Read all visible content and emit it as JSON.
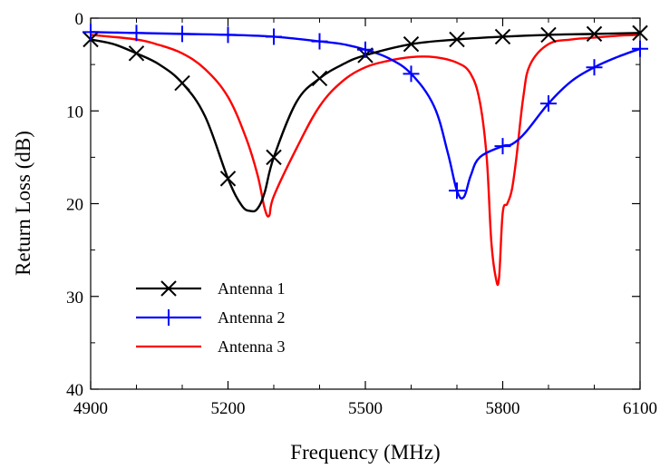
{
  "chart_data": {
    "type": "line",
    "title": "",
    "xlabel": "Frequency (MHz)",
    "ylabel": "Return Loss (dB)",
    "xlim": [
      4900,
      6100
    ],
    "ylim": [
      0,
      40
    ],
    "y_inverted": true,
    "x_ticks": [
      "4900",
      "5200",
      "5500",
      "5800",
      "6100"
    ],
    "x_tick_values": [
      4900,
      5200,
      5500,
      5800,
      6100
    ],
    "y_ticks": [
      "0",
      "10",
      "20",
      "30",
      "40"
    ],
    "y_tick_values": [
      0,
      10,
      20,
      30,
      40
    ],
    "grid": false,
    "legend_position": "lower-left",
    "series": [
      {
        "name": "Antenna 1",
        "color": "#000000",
        "marker": "x-marker",
        "x": [
          4900,
          4950,
          5000,
          5050,
          5100,
          5150,
          5200,
          5230,
          5250,
          5265,
          5280,
          5300,
          5350,
          5400,
          5450,
          5500,
          5600,
          5700,
          5800,
          5900,
          6000,
          6100
        ],
        "y": [
          2.3,
          2.8,
          3.8,
          5.0,
          7.0,
          10.6,
          17.3,
          20.2,
          20.8,
          20.5,
          18.8,
          15.0,
          9.0,
          6.5,
          5.0,
          4.0,
          2.8,
          2.3,
          2.0,
          1.8,
          1.7,
          1.6
        ]
      },
      {
        "name": "Antenna 2",
        "color": "#0000ff",
        "marker": "plus-marker",
        "x": [
          4900,
          5000,
          5100,
          5200,
          5300,
          5400,
          5450,
          5500,
          5550,
          5600,
          5650,
          5680,
          5700,
          5715,
          5730,
          5750,
          5800,
          5820,
          5850,
          5900,
          5950,
          6000,
          6050,
          6100
        ],
        "y": [
          1.5,
          1.6,
          1.7,
          1.8,
          2.0,
          2.5,
          2.8,
          3.4,
          4.3,
          6.0,
          9.5,
          14.5,
          18.6,
          19.3,
          17.0,
          15.0,
          13.8,
          13.6,
          12.3,
          9.2,
          6.8,
          5.3,
          4.2,
          3.3
        ]
      },
      {
        "name": "Antenna 3",
        "color": "#ff0000",
        "marker": "none",
        "x": [
          4900,
          5000,
          5050,
          5100,
          5150,
          5200,
          5240,
          5265,
          5280,
          5290,
          5300,
          5350,
          5400,
          5450,
          5500,
          5550,
          5600,
          5650,
          5700,
          5730,
          5750,
          5765,
          5775,
          5785,
          5792,
          5800,
          5810,
          5820,
          5830,
          5845,
          5860,
          5900,
          5950,
          6000,
          6050,
          6100
        ],
        "y": [
          1.8,
          2.3,
          2.9,
          3.8,
          5.5,
          8.5,
          13.0,
          17.0,
          20.5,
          21.3,
          19.2,
          14.0,
          9.5,
          6.8,
          5.3,
          4.6,
          4.2,
          4.2,
          4.8,
          6.0,
          9.0,
          15.0,
          24.0,
          28.0,
          28.0,
          21.0,
          20.0,
          18.5,
          15.0,
          8.5,
          5.0,
          2.8,
          2.3,
          2.1,
          1.9,
          1.8
        ]
      }
    ]
  }
}
